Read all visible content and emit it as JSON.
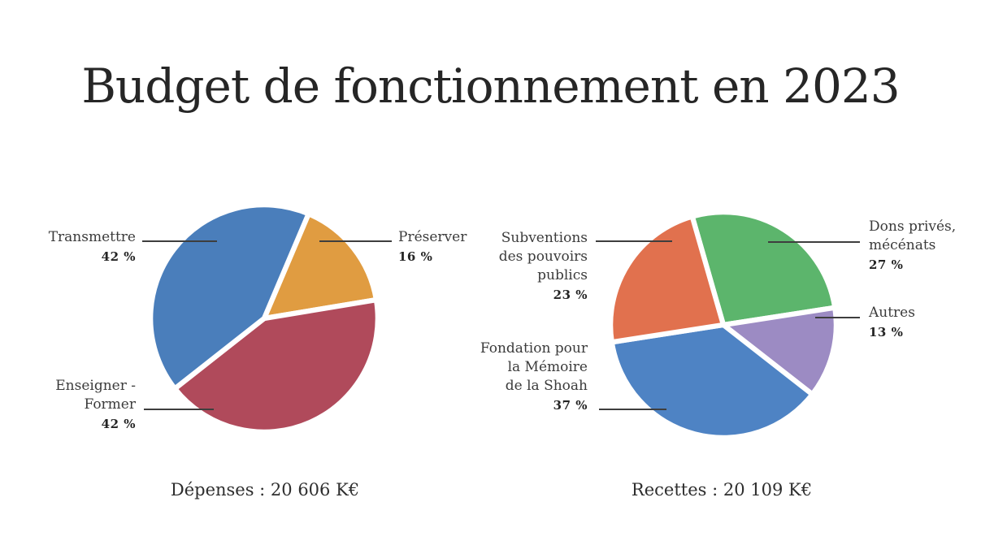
{
  "page_title": "Budget de fonctionnement en 2023",
  "colors": {
    "background": "#ffffff",
    "title_text": "#262626",
    "label_text": "#3b3b3b",
    "pct_text": "#242424",
    "callout_line": "#3e3e3e",
    "slice_gap": "#ffffff",
    "depenses_blue": "#4A7EBB",
    "depenses_red": "#B04A5B",
    "depenses_orange": "#E09C41",
    "recettes_green": "#5CB56C",
    "recettes_purple": "#9C8BC3",
    "recettes_blue": "#4E83C4",
    "recettes_orange": "#E1714E"
  },
  "chart_data": [
    {
      "type": "pie",
      "name": "depenses",
      "caption": "Dépenses : 20 606 K€",
      "total_label": "Dépenses",
      "total_value": "20 606 K€",
      "unit": "%",
      "legend": "callout-labels",
      "start_angle_clockwise_from_top": 23,
      "slices": [
        {
          "label": "Préserver",
          "value": 16,
          "color": "#E09C41"
        },
        {
          "label": "Enseigner - Former",
          "value": 42,
          "color": "#B04A5B"
        },
        {
          "label": "Transmettre",
          "value": 42,
          "color": "#4A7EBB"
        }
      ]
    },
    {
      "type": "pie",
      "name": "recettes",
      "caption": "Recettes : 20 109 K€",
      "total_label": "Recettes",
      "total_value": "20 109 K€",
      "unit": "%",
      "legend": "callout-labels",
      "start_angle_clockwise_from_top": -16,
      "slices": [
        {
          "label": "Dons privés, mécénats",
          "value": 27,
          "color": "#5CB56C"
        },
        {
          "label": "Autres",
          "value": 13,
          "color": "#9C8BC3"
        },
        {
          "label": "Fondation pour la Mémoire de la Shoah",
          "value": 37,
          "color": "#4E83C4"
        },
        {
          "label": "Subventions des pouvoirs publics",
          "value": 23,
          "color": "#E1714E"
        }
      ]
    }
  ],
  "callouts": {
    "transmettre": {
      "lines": [
        "Transmettre"
      ],
      "pct": "42 %"
    },
    "preserver": {
      "lines": [
        "Préserver"
      ],
      "pct": "16 %"
    },
    "enseigner": {
      "lines": [
        "Enseigner -",
        "Former"
      ],
      "pct": "42 %"
    },
    "subventions": {
      "lines": [
        "Subventions",
        "des pouvoirs",
        "publics"
      ],
      "pct": "23 %"
    },
    "dons": {
      "lines": [
        "Dons privés,",
        "mécénats"
      ],
      "pct": "27 %"
    },
    "autres": {
      "lines": [
        "Autres"
      ],
      "pct": "13 %"
    },
    "fondation": {
      "lines": [
        "Fondation pour",
        "la Mémoire",
        "de la Shoah"
      ],
      "pct": "37 %"
    }
  }
}
